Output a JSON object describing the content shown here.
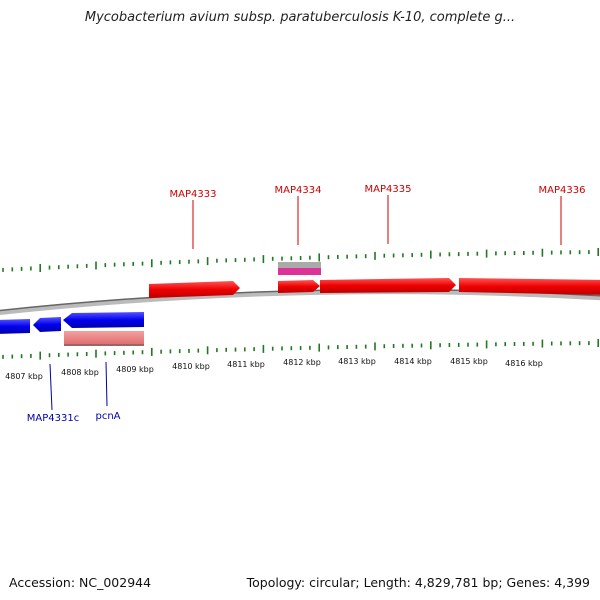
{
  "title": "Mycobacterium avium subsp. paratuberculosis K-10, complete g...",
  "accession": "Accession: NC_002944",
  "summary": "Topology: circular; Length: 4,829,781 bp; Genes: 4,399",
  "colors": {
    "forward_gene": "#ee0000",
    "reverse_gene": "#0000ee",
    "feature_pink": "#ee7777",
    "feature_magenta": "#dd3399",
    "feature_gray": "#aaaaaa",
    "tick_green": "#227722",
    "backbone": "#777777"
  },
  "kbp_labels": [
    "4807 kbp",
    "4808 kbp",
    "4809 kbp",
    "4810 kbp",
    "4811 kbp",
    "4812 kbp",
    "4813 kbp",
    "4814 kbp",
    "4815 kbp",
    "4816 kbp"
  ],
  "top_genes": [
    "MAP4333",
    "MAP4334",
    "MAP4335",
    "MAP4336"
  ],
  "bottom_genes": [
    "MAP4331c",
    "pcnA"
  ]
}
